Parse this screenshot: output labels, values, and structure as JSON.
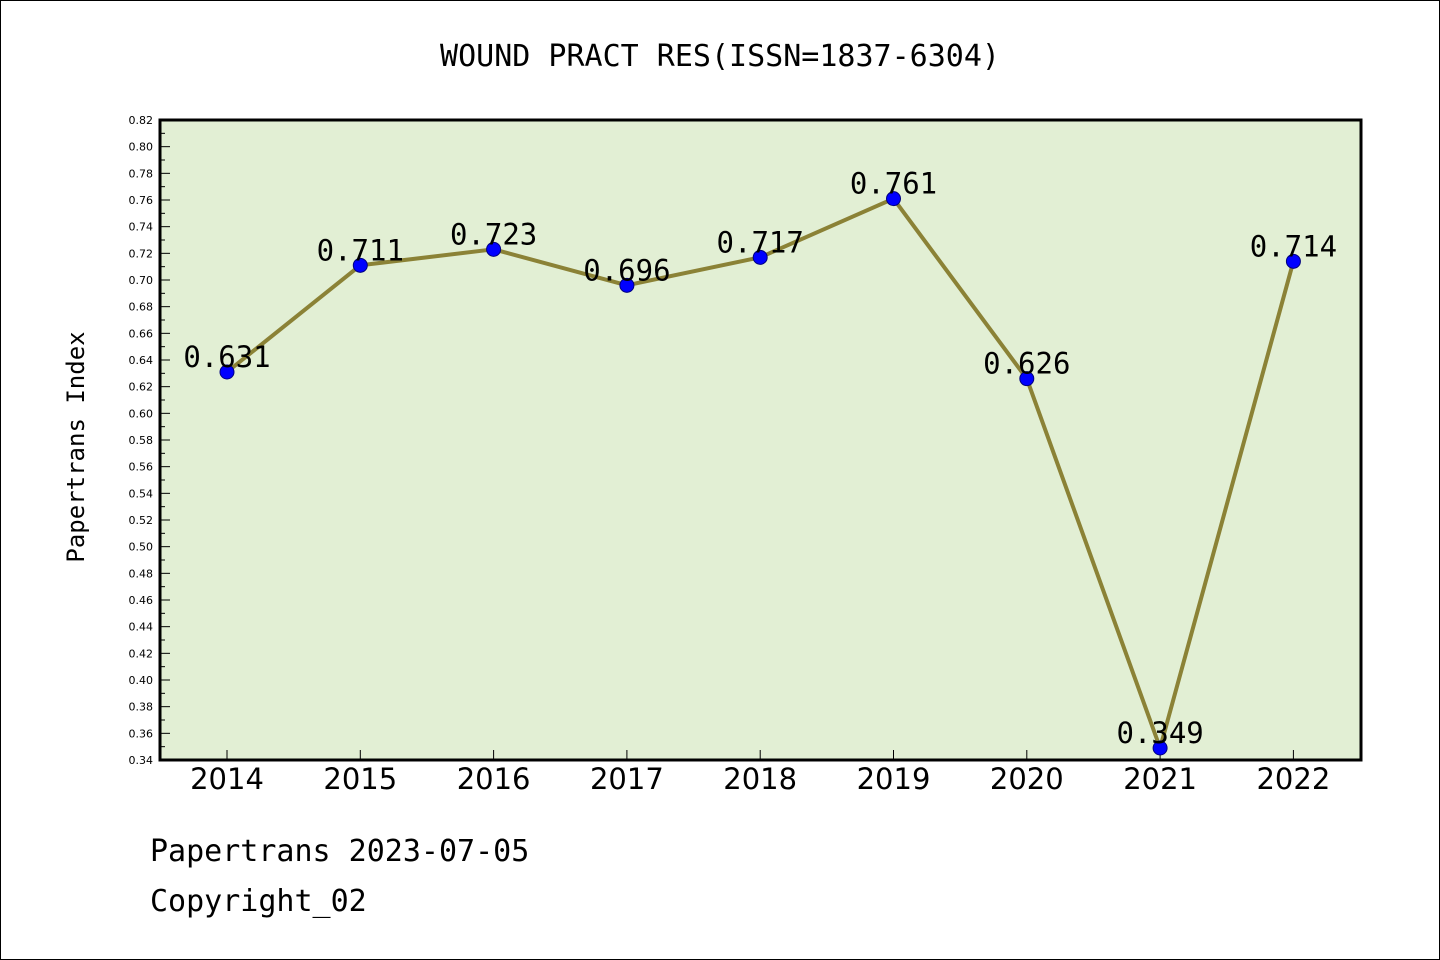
{
  "chart_data": {
    "type": "line",
    "title": "WOUND PRACT RES(ISSN=1837-6304)",
    "xlabel": "",
    "ylabel": "Papertrans Index",
    "categories": [
      "2014",
      "2015",
      "2016",
      "2017",
      "2018",
      "2019",
      "2020",
      "2021",
      "2022"
    ],
    "series": [
      {
        "values": [
          0.631,
          0.711,
          0.723,
          0.696,
          0.717,
          0.761,
          0.626,
          0.349,
          0.714
        ]
      }
    ],
    "data_labels": [
      "0.631",
      "0.711",
      "0.723",
      "0.696",
      "0.717",
      "0.761",
      "0.626",
      "0.349",
      "0.714"
    ],
    "ylim": [
      0.34,
      0.82
    ],
    "yticks": [
      "0.34",
      "0.36",
      "0.38",
      "0.40",
      "0.42",
      "0.44",
      "0.46",
      "0.48",
      "0.50",
      "0.52",
      "0.54",
      "0.56",
      "0.58",
      "0.60",
      "0.62",
      "0.64",
      "0.66",
      "0.68",
      "0.70",
      "0.72",
      "0.74",
      "0.76",
      "0.78",
      "0.80",
      "0.82"
    ],
    "grid": false,
    "legend": "none",
    "colors": {
      "plot_background": "#e2efd4",
      "line": "#8b8236",
      "marker": "#0000ff",
      "marker_edge": "#000080",
      "axis": "#000000"
    }
  },
  "footer": {
    "date_line": "Papertrans 2023-07-05",
    "copyright_line": "Copyright_02"
  }
}
